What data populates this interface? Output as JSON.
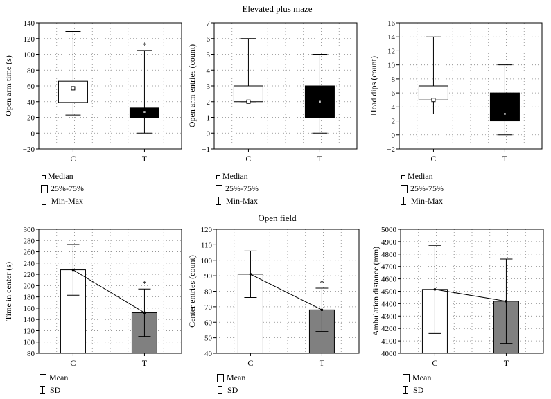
{
  "figure": {
    "section_titles": [
      "Elevated plus maze",
      "Open field"
    ],
    "legend_boxplot": [
      "Median",
      "25%-75%",
      "Min-Max"
    ],
    "legend_bar": [
      "Mean",
      "SD"
    ],
    "colors": {
      "control_fill": "#ffffff",
      "box_treated_fill": "#000000",
      "bar_treated_fill": "#808080",
      "grid": "#888888"
    }
  },
  "chart_data": [
    {
      "type": "box",
      "title": "Elevated plus maze",
      "ylabel": "Open arm time (s)",
      "categories": [
        "C",
        "T"
      ],
      "ylim": [
        -20,
        140
      ],
      "yticks": [
        -20,
        0,
        20,
        40,
        60,
        80,
        100,
        120,
        140
      ],
      "boxes": [
        {
          "name": "C",
          "min": 23,
          "q1": 39,
          "median": 57,
          "q3": 66,
          "max": 129,
          "fill": "white"
        },
        {
          "name": "T",
          "min": 0,
          "q1": 20,
          "median": 27,
          "q3": 32,
          "max": 105,
          "fill": "black"
        }
      ],
      "annotations": [
        {
          "category": "T",
          "text": "*"
        }
      ],
      "legend": [
        "Median",
        "25%-75%",
        "Min-Max"
      ]
    },
    {
      "type": "box",
      "title": "Elevated plus maze",
      "ylabel": "Open arm entries (count)",
      "categories": [
        "C",
        "T"
      ],
      "ylim": [
        -1,
        7
      ],
      "yticks": [
        -1,
        0,
        1,
        2,
        3,
        4,
        5,
        6,
        7
      ],
      "boxes": [
        {
          "name": "C",
          "min": 2,
          "q1": 2,
          "median": 2,
          "q3": 3,
          "max": 6,
          "fill": "white"
        },
        {
          "name": "T",
          "min": 0,
          "q1": 1,
          "median": 2,
          "q3": 3,
          "max": 5,
          "fill": "black"
        }
      ],
      "annotations": [],
      "legend": [
        "Median",
        "25%-75%",
        "Min-Max"
      ]
    },
    {
      "type": "box",
      "title": "Elevated plus maze",
      "ylabel": "Head dips (count)",
      "categories": [
        "C",
        "T"
      ],
      "ylim": [
        -2,
        16
      ],
      "yticks": [
        -2,
        0,
        2,
        4,
        6,
        8,
        10,
        12,
        14,
        16
      ],
      "boxes": [
        {
          "name": "C",
          "min": 3,
          "q1": 5,
          "median": 5,
          "q3": 7,
          "max": 14,
          "fill": "white"
        },
        {
          "name": "T",
          "min": 0,
          "q1": 2,
          "median": 3,
          "q3": 6,
          "max": 10,
          "fill": "black"
        }
      ],
      "annotations": [],
      "legend": [
        "Median",
        "25%-75%",
        "Min-Max"
      ]
    },
    {
      "type": "bar",
      "title": "Open field",
      "ylabel": "Time in center (s)",
      "categories": [
        "C",
        "T"
      ],
      "ylim": [
        80,
        300
      ],
      "yticks": [
        80,
        100,
        120,
        140,
        160,
        180,
        200,
        220,
        240,
        260,
        280,
        300
      ],
      "bars": [
        {
          "name": "C",
          "mean": 228,
          "sd": 45,
          "fill": "white"
        },
        {
          "name": "T",
          "mean": 152,
          "sd": 42,
          "fill": "gray"
        }
      ],
      "mean_line": true,
      "annotations": [
        {
          "category": "T",
          "text": "*"
        }
      ],
      "legend": [
        "Mean",
        "SD"
      ]
    },
    {
      "type": "bar",
      "title": "Open field",
      "ylabel": "Center entries (count)",
      "categories": [
        "C",
        "T"
      ],
      "ylim": [
        40,
        120
      ],
      "yticks": [
        40,
        50,
        60,
        70,
        80,
        90,
        100,
        110,
        120
      ],
      "bars": [
        {
          "name": "C",
          "mean": 91,
          "sd": 15,
          "fill": "white"
        },
        {
          "name": "T",
          "mean": 68,
          "sd": 14,
          "fill": "gray"
        }
      ],
      "mean_line": true,
      "annotations": [
        {
          "category": "T",
          "text": "*"
        }
      ],
      "legend": [
        "Mean",
        "SD"
      ]
    },
    {
      "type": "bar",
      "title": "Open field",
      "ylabel": "Ambulation distance (mm)",
      "categories": [
        "C",
        "T"
      ],
      "ylim": [
        4000,
        5000
      ],
      "yticks": [
        4000,
        4100,
        4200,
        4300,
        4400,
        4500,
        4600,
        4700,
        4800,
        4900,
        5000
      ],
      "bars": [
        {
          "name": "C",
          "mean": 4515,
          "sd": 355,
          "fill": "white"
        },
        {
          "name": "T",
          "mean": 4420,
          "sd": 340,
          "fill": "gray"
        }
      ],
      "mean_line": true,
      "annotations": [],
      "legend": [
        "Mean",
        "SD"
      ]
    }
  ]
}
